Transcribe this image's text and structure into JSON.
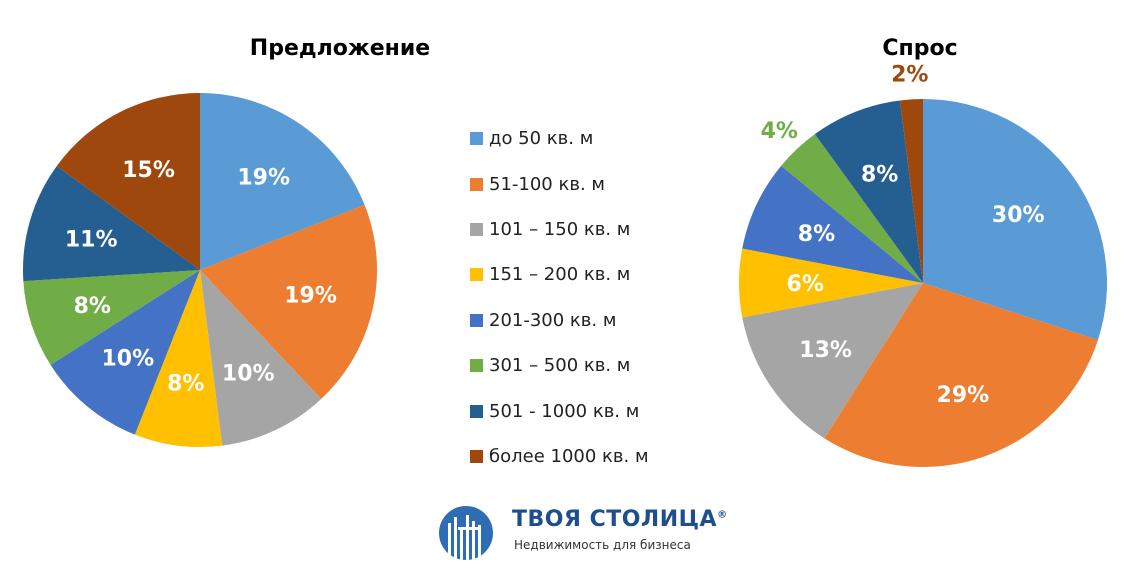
{
  "categories": [
    "до 50 кв. м",
    "51-100 кв. м",
    "101 – 150 кв. м",
    "151 – 200 кв. м",
    "201-300 кв. м",
    "301 – 500 кв. м",
    "501 - 1000 кв. м",
    "более 1000 кв. м"
  ],
  "colors": [
    "#5b9bd5",
    "#ed7d31",
    "#a5a5a5",
    "#ffc000",
    "#4472c4",
    "#70ad47",
    "#255e91",
    "#9e480e"
  ],
  "chart_data": [
    {
      "type": "pie",
      "title": "Предложение",
      "categories": [
        "до 50 кв. м",
        "51-100 кв. м",
        "101 – 150 кв. м",
        "151 – 200 кв. м",
        "201-300 кв. м",
        "301 – 500 кв. м",
        "501 - 1000 кв. м",
        "более 1000 кв. м"
      ],
      "values": [
        19,
        19,
        10,
        8,
        10,
        8,
        11,
        15
      ],
      "labels": [
        "19%",
        "19%",
        "10%",
        "8%",
        "10%",
        "8%",
        "11%",
        "15%"
      ],
      "legend": "center"
    },
    {
      "type": "pie",
      "title": "Спрос",
      "categories": [
        "до 50 кв. м",
        "51-100 кв. м",
        "101 – 150 кв. м",
        "151 – 200 кв. м",
        "201-300 кв. м",
        "301 – 500 кв. м",
        "501 - 1000 кв. м",
        "более 1000 кв. м"
      ],
      "values": [
        30,
        29,
        13,
        6,
        8,
        4,
        8,
        2
      ],
      "labels": [
        "30%",
        "29%",
        "13%",
        "6%",
        "8%",
        "4%",
        "8%",
        "2%"
      ],
      "legend": "center"
    }
  ],
  "logo": {
    "name": "ТВОЯ СТОЛИЦА",
    "registered": "®",
    "tagline": "Недвижимость для бизнеса"
  }
}
